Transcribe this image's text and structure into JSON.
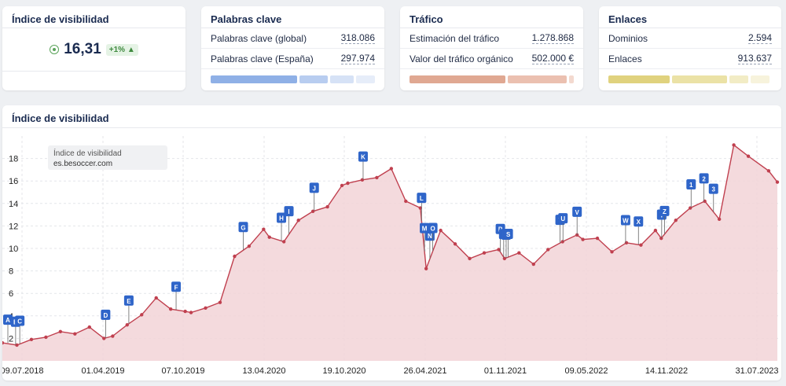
{
  "cards": {
    "visibility": {
      "title": "Índice de visibilidad",
      "value": "16,31",
      "change": "+1%"
    },
    "keywords": {
      "title": "Palabras clave",
      "rows": [
        {
          "label": "Palabras clave (global)",
          "value": "318.086"
        },
        {
          "label": "Palabras clave (España)",
          "value": "297.974"
        }
      ]
    },
    "traffic": {
      "title": "Tráfico",
      "rows": [
        {
          "label": "Estimación del tráfico",
          "value": "1.278.868"
        },
        {
          "label": "Valor del tráfico orgánico",
          "value": "502.000 €"
        }
      ]
    },
    "links": {
      "title": "Enlaces",
      "rows": [
        {
          "label": "Dominios",
          "value": "2.594"
        },
        {
          "label": "Enlaces",
          "value": "913.637"
        }
      ]
    }
  },
  "colors": {
    "keywords_bar": "#8fb0e6",
    "traffic_bar": "#e0a892",
    "links_bar": "#e0d27e",
    "line": "#c0404f",
    "area": "#f2d3d7",
    "flag": "#2f65c9"
  },
  "chart_data": {
    "type": "area",
    "title": "Índice de visibilidad",
    "legend": {
      "title": "Índice de visibilidad",
      "series": "es.besoccer.com"
    },
    "x_ticks": [
      "09.07.2018",
      "01.04.2019",
      "07.10.2019",
      "13.04.2020",
      "19.10.2020",
      "26.04.2021",
      "01.11.2021",
      "09.05.2022",
      "14.11.2022",
      "31.07.2023"
    ],
    "y_ticks": [
      2,
      4,
      6,
      8,
      10,
      12,
      14,
      16,
      18
    ],
    "ylim": [
      0,
      20
    ],
    "grid": true,
    "series": [
      {
        "name": "es.besoccer.com",
        "x": [
          "2018-07-09",
          "2018-08-13",
          "2018-09-17",
          "2018-10-22",
          "2018-11-26",
          "2018-12-31",
          "2019-02-04",
          "2019-03-11",
          "2019-04-01",
          "2019-05-06",
          "2019-06-10",
          "2019-07-15",
          "2019-08-19",
          "2019-09-23",
          "2019-10-07",
          "2019-11-11",
          "2019-12-16",
          "2020-01-20",
          "2020-02-24",
          "2020-03-30",
          "2020-04-13",
          "2020-05-18",
          "2020-06-22",
          "2020-07-27",
          "2020-08-31",
          "2020-10-05",
          "2020-10-19",
          "2020-11-23",
          "2020-12-28",
          "2021-02-01",
          "2021-03-08",
          "2021-04-12",
          "2021-04-26",
          "2021-05-31",
          "2021-07-05",
          "2021-08-09",
          "2021-09-13",
          "2021-10-18",
          "2021-11-01",
          "2021-12-06",
          "2022-01-10",
          "2022-02-14",
          "2022-03-21",
          "2022-04-25",
          "2022-05-09",
          "2022-06-13",
          "2022-07-18",
          "2022-08-22",
          "2022-09-26",
          "2022-10-31",
          "2022-11-14",
          "2022-12-19",
          "2023-01-23",
          "2023-02-27",
          "2023-04-03",
          "2023-05-08",
          "2023-06-12",
          "2023-07-31",
          "2023-08-21"
        ],
        "values": [
          1.6,
          1.4,
          1.9,
          2.1,
          2.6,
          2.4,
          3.0,
          2.0,
          2.2,
          3.2,
          4.1,
          5.6,
          4.6,
          4.4,
          4.3,
          4.7,
          5.2,
          9.3,
          10.2,
          11.7,
          11.0,
          10.6,
          12.5,
          13.3,
          13.7,
          15.6,
          15.8,
          16.1,
          16.3,
          17.1,
          14.2,
          13.6,
          8.2,
          11.6,
          10.4,
          9.1,
          9.6,
          9.9,
          9.1,
          9.6,
          8.6,
          9.9,
          10.6,
          11.2,
          10.8,
          10.9,
          9.7,
          10.5,
          10.3,
          11.6,
          10.9,
          12.5,
          13.6,
          14.2,
          12.6,
          19.2,
          18.2,
          16.9,
          15.9
        ]
      }
    ],
    "events": [
      {
        "label": "A",
        "x": "2018-07-09"
      },
      {
        "label": "B",
        "x": "2018-08-10"
      },
      {
        "label": "C",
        "x": "2018-08-20"
      },
      {
        "label": "D",
        "x": "2019-03-15"
      },
      {
        "label": "E",
        "x": "2019-05-10"
      },
      {
        "label": "F",
        "x": "2019-09-01"
      },
      {
        "label": "G",
        "x": "2020-02-10"
      },
      {
        "label": "H",
        "x": "2020-05-12"
      },
      {
        "label": "I",
        "x": "2020-05-30"
      },
      {
        "label": "J",
        "x": "2020-07-30"
      },
      {
        "label": "K",
        "x": "2020-11-25"
      },
      {
        "label": "L",
        "x": "2021-04-15"
      },
      {
        "label": "M",
        "x": "2021-04-22"
      },
      {
        "label": "N",
        "x": "2021-05-05"
      },
      {
        "label": "O",
        "x": "2021-05-12"
      },
      {
        "label": "P",
        "x": "2021-10-22"
      },
      {
        "label": "Q",
        "x": "2021-10-30"
      },
      {
        "label": "R",
        "x": "2021-11-05"
      },
      {
        "label": "S",
        "x": "2021-11-10"
      },
      {
        "label": "T",
        "x": "2022-03-15"
      },
      {
        "label": "U",
        "x": "2022-03-22"
      },
      {
        "label": "V",
        "x": "2022-04-25"
      },
      {
        "label": "W",
        "x": "2022-08-20"
      },
      {
        "label": "X",
        "x": "2022-09-20"
      },
      {
        "label": "Y",
        "x": "2022-11-15"
      },
      {
        "label": "Z",
        "x": "2022-11-22"
      },
      {
        "label": "1",
        "x": "2023-01-25"
      },
      {
        "label": "2",
        "x": "2023-02-25"
      },
      {
        "label": "3",
        "x": "2023-03-20"
      }
    ]
  }
}
